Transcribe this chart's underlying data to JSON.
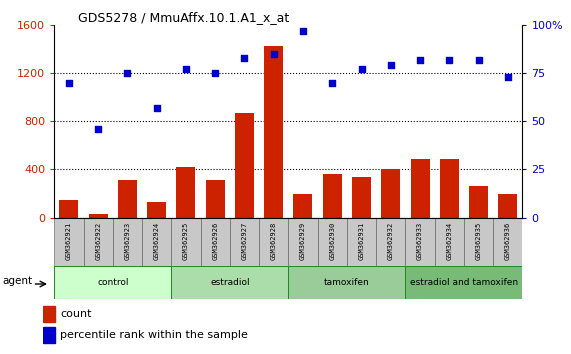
{
  "title": "GDS5278 / MmuAffx.10.1.A1_x_at",
  "samples": [
    "GSM362921",
    "GSM362922",
    "GSM362923",
    "GSM362924",
    "GSM362925",
    "GSM362926",
    "GSM362927",
    "GSM362928",
    "GSM362929",
    "GSM362930",
    "GSM362931",
    "GSM362932",
    "GSM362933",
    "GSM362934",
    "GSM362935",
    "GSM362936"
  ],
  "counts": [
    150,
    30,
    310,
    130,
    420,
    310,
    870,
    1420,
    200,
    360,
    340,
    400,
    490,
    490,
    260,
    200
  ],
  "percentile": [
    70,
    46,
    75,
    57,
    77,
    75,
    83,
    85,
    97,
    70,
    77,
    79,
    82,
    82,
    82,
    73
  ],
  "groups": [
    {
      "label": "control",
      "start": 0,
      "end": 4,
      "color": "#ccffcc"
    },
    {
      "label": "estradiol",
      "start": 4,
      "end": 8,
      "color": "#aaddaa"
    },
    {
      "label": "tamoxifen",
      "start": 8,
      "end": 12,
      "color": "#99cc99"
    },
    {
      "label": "estradiol and tamoxifen",
      "start": 12,
      "end": 16,
      "color": "#77bb77"
    }
  ],
  "bar_color": "#cc2200",
  "dot_color": "#0000cc",
  "left_ylim": [
    0,
    1600
  ],
  "left_yticks": [
    0,
    400,
    800,
    1200,
    1600
  ],
  "right_ylim": [
    0,
    100
  ],
  "right_yticks": [
    0,
    25,
    50,
    75,
    100
  ],
  "grid_values": [
    400,
    800,
    1200
  ],
  "agent_label": "agent",
  "legend_count_label": "count",
  "legend_pct_label": "percentile rank within the sample",
  "sample_box_color": "#c8c8c8",
  "border_color": "#000000"
}
